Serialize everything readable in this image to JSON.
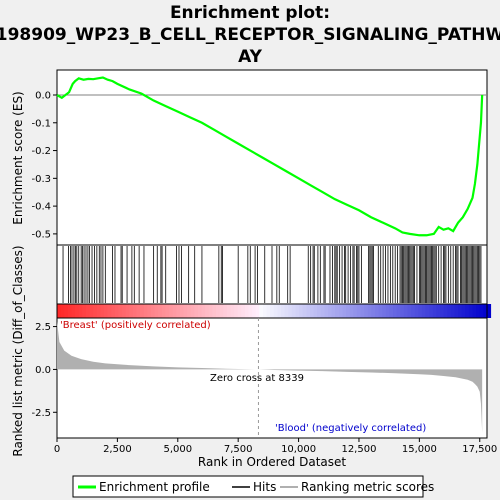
{
  "chart_data": {
    "type": "line",
    "title_lines": [
      "Enrichment plot:",
      "198909_WP23_B_CELL_RECEPTOR_SIGNALING_PATHW",
      "AY"
    ],
    "xlabel": "Rank in Ordered Dataset",
    "es_ylabel": "Enrichment score (ES)",
    "metric_ylabel": "Ranked list metric (Diff_of_Classes)",
    "xlim": [
      0,
      17800
    ],
    "es_ylim": [
      -0.54,
      0.09
    ],
    "metric_ylim": [
      -4.0,
      3.0
    ],
    "x_ticks": [
      0,
      2500,
      5000,
      7500,
      10000,
      12500,
      15000,
      17500
    ],
    "x_tick_labels": [
      "0",
      "2,500",
      "5,000",
      "7,500",
      "10,000",
      "12,500",
      "15,000",
      "17,500"
    ],
    "es_ticks": [
      0.0,
      -0.1,
      -0.2,
      -0.3,
      -0.4,
      -0.5
    ],
    "es_tick_labels": [
      "0.0",
      "-0.1",
      "-0.2",
      "-0.3",
      "-0.4",
      "-0.5"
    ],
    "metric_ticks": [
      2.5,
      0.0,
      -2.5
    ],
    "metric_tick_labels": [
      "2.5",
      "0.0",
      "-2.5"
    ],
    "series": [
      {
        "name": "Enrichment profile",
        "color": "#00ff00",
        "x": [
          0,
          200,
          350,
          500,
          650,
          750,
          900,
          1100,
          1300,
          1500,
          1700,
          1900,
          2100,
          2300,
          2500,
          3000,
          3500,
          4000,
          4500,
          5000,
          5500,
          6000,
          6500,
          7000,
          7500,
          8000,
          8500,
          9000,
          9500,
          10000,
          10500,
          11000,
          11500,
          12000,
          12500,
          13000,
          13500,
          14000,
          14300,
          14600,
          15000,
          15300,
          15600,
          15800,
          16000,
          16200,
          16400,
          16600,
          16800,
          17000,
          17200,
          17300,
          17400,
          17450,
          17500,
          17550,
          17600
        ],
        "y": [
          0.0,
          -0.01,
          0.0,
          0.01,
          0.04,
          0.05,
          0.06,
          0.055,
          0.058,
          0.057,
          0.06,
          0.063,
          0.055,
          0.05,
          0.04,
          0.02,
          0.005,
          -0.02,
          -0.04,
          -0.06,
          -0.08,
          -0.1,
          -0.125,
          -0.15,
          -0.175,
          -0.2,
          -0.225,
          -0.25,
          -0.275,
          -0.3,
          -0.325,
          -0.35,
          -0.375,
          -0.395,
          -0.415,
          -0.44,
          -0.46,
          -0.48,
          -0.495,
          -0.5,
          -0.505,
          -0.505,
          -0.5,
          -0.475,
          -0.485,
          -0.48,
          -0.49,
          -0.46,
          -0.44,
          -0.41,
          -0.37,
          -0.32,
          -0.25,
          -0.2,
          -0.15,
          -0.1,
          0.0
        ]
      },
      {
        "name": "Hits",
        "color": "#000000",
        "positions": [
          250,
          480,
          560,
          620,
          700,
          760,
          820,
          900,
          1000,
          1050,
          1120,
          1200,
          1280,
          1350,
          1450,
          1550,
          1650,
          1750,
          1820,
          1900,
          2000,
          2300,
          2400,
          2650,
          2700,
          2900,
          3100,
          3200,
          3400,
          3600,
          4000,
          4150,
          4300,
          4350,
          4500,
          4950,
          5050,
          5150,
          5450,
          5700,
          6000,
          6700,
          6800,
          6850,
          7500,
          7900,
          8000,
          8200,
          8300,
          8600,
          8900,
          9100,
          9200,
          9550,
          9650,
          10400,
          10500,
          10600,
          10650,
          10800,
          10900,
          11050,
          11100,
          11300,
          11400,
          11500,
          11550,
          11600,
          11700,
          11800,
          11900,
          11950,
          12050,
          12150,
          12250,
          12300,
          12400,
          12450,
          12500,
          12600,
          12900,
          12950,
          13000,
          13050,
          13100,
          13300,
          13400,
          13500,
          13600,
          13700,
          13800,
          13900,
          14000,
          14100,
          14200,
          14250,
          14300,
          14350,
          14400,
          14450,
          14500,
          14550,
          14600,
          14650,
          14700,
          14750,
          14800,
          14900,
          15000,
          15050,
          15100,
          15150,
          15200,
          15250,
          15300,
          15350,
          15400,
          15450,
          15500,
          15550,
          15600,
          15650,
          15700,
          15800,
          15900,
          16000,
          16050,
          16100,
          16200,
          16300,
          16400,
          16500,
          16550,
          16600,
          16700,
          16750,
          16800,
          16850,
          16900,
          16950,
          17000,
          17050,
          17100,
          17150,
          17200,
          17250,
          17300,
          17350,
          17400,
          17450,
          17500,
          17550
        ]
      },
      {
        "name": "Ranking metric scores",
        "color": "#b0b0b0",
        "x": [
          0,
          100,
          300,
          600,
          1000,
          1500,
          2000,
          3000,
          4000,
          5000,
          6000,
          7000,
          8000,
          8339,
          9000,
          10000,
          11000,
          12000,
          13000,
          14000,
          15000,
          15500,
          16000,
          16500,
          17000,
          17200,
          17300,
          17400,
          17500,
          17550,
          17600
        ],
        "y": [
          2.8,
          1.6,
          1.1,
          0.8,
          0.6,
          0.45,
          0.35,
          0.25,
          0.18,
          0.12,
          0.08,
          0.04,
          0.01,
          0.0,
          -0.03,
          -0.07,
          -0.1,
          -0.14,
          -0.18,
          -0.22,
          -0.28,
          -0.32,
          -0.38,
          -0.46,
          -0.6,
          -0.72,
          -0.85,
          -1.0,
          -1.3,
          -2.0,
          -3.7
        ]
      }
    ],
    "heatmap_labels": {
      "positive": "'Breast' (positively correlated)",
      "negative": "'Blood' (negatively correlated)"
    },
    "zero_cross": 8339,
    "zero_cross_label": "Zero cross at 8339",
    "legend": {
      "placement": "bottom",
      "items": [
        "Enrichment profile",
        "Hits",
        "Ranking metric scores"
      ]
    }
  }
}
